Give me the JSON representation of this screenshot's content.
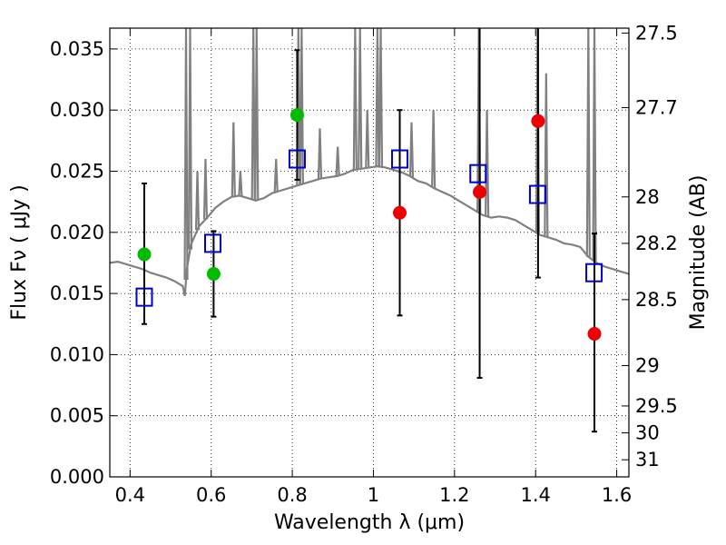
{
  "chart_data": {
    "type": "scatter",
    "title": "",
    "xlabel": "Wavelength  λ (μm)",
    "ylabel": "Flux  Fν  ( μJy )",
    "ylabel_right": "Magnitude (AB)",
    "xlim": [
      0.35,
      1.63
    ],
    "ylim": [
      0.0,
      0.0367
    ],
    "grid": true,
    "x_ticks": [
      0.4,
      0.6,
      0.8,
      1.0,
      1.2,
      1.4,
      1.6
    ],
    "x_tick_labels": [
      "0.4",
      "0.6",
      "0.8",
      "1",
      "1.2",
      "1.4",
      "1.6"
    ],
    "y_ticks": [
      0.0,
      0.005,
      0.01,
      0.015,
      0.02,
      0.025,
      0.03,
      0.035
    ],
    "y_tick_labels": [
      "0.000",
      "0.005",
      "0.010",
      "0.015",
      "0.020",
      "0.025",
      "0.030",
      "0.035"
    ],
    "right_ticks": [
      {
        "label": "27.5",
        "flux": 0.0363
      },
      {
        "label": "27.7",
        "flux": 0.0302
      },
      {
        "label": "28",
        "flux": 0.0229
      },
      {
        "label": "28.2",
        "flux": 0.0191
      },
      {
        "label": "28.5",
        "flux": 0.0145
      },
      {
        "label": "29",
        "flux": 0.0091
      },
      {
        "label": "29.5",
        "flux": 0.0058
      },
      {
        "label": "30",
        "flux": 0.0036
      },
      {
        "label": "31",
        "flux": 0.0014
      }
    ],
    "colors": {
      "model": "#808080",
      "green": "#00bb00",
      "red": "#ee0000",
      "square": "#0000cc",
      "errorbar": "#000000"
    },
    "model_spectrum": {
      "x": [
        0.35,
        0.37,
        0.39,
        0.41,
        0.43,
        0.45,
        0.47,
        0.49,
        0.51,
        0.53,
        0.535,
        0.54,
        0.55,
        0.57,
        0.59,
        0.61,
        0.63,
        0.65,
        0.67,
        0.69,
        0.71,
        0.73,
        0.75,
        0.77,
        0.79,
        0.81,
        0.83,
        0.85,
        0.87,
        0.89,
        0.91,
        0.93,
        0.95,
        0.97,
        0.99,
        1.01,
        1.03,
        1.05,
        1.07,
        1.09,
        1.11,
        1.13,
        1.15,
        1.17,
        1.19,
        1.21,
        1.23,
        1.25,
        1.27,
        1.29,
        1.31,
        1.33,
        1.35,
        1.37,
        1.39,
        1.41,
        1.43,
        1.45,
        1.47,
        1.49,
        1.51,
        1.53,
        1.55,
        1.57,
        1.59,
        1.61,
        1.63
      ],
      "y": [
        0.0175,
        0.0176,
        0.0174,
        0.0172,
        0.017,
        0.0167,
        0.0165,
        0.0163,
        0.016,
        0.0156,
        0.0148,
        0.017,
        0.019,
        0.0205,
        0.0212,
        0.022,
        0.0225,
        0.0229,
        0.023,
        0.0228,
        0.0226,
        0.0228,
        0.0232,
        0.0234,
        0.0236,
        0.0238,
        0.024,
        0.0242,
        0.0244,
        0.0245,
        0.0246,
        0.0248,
        0.0251,
        0.0252,
        0.0253,
        0.0254,
        0.0253,
        0.0251,
        0.0249,
        0.0246,
        0.0242,
        0.024,
        0.0236,
        0.0233,
        0.023,
        0.0226,
        0.0222,
        0.0218,
        0.0214,
        0.0212,
        0.0213,
        0.0212,
        0.021,
        0.0206,
        0.0202,
        0.0198,
        0.0196,
        0.0194,
        0.0191,
        0.019,
        0.0188,
        0.018,
        0.0175,
        0.0172,
        0.017,
        0.0168,
        0.0166
      ]
    },
    "emission_lines": [
      {
        "x": 0.538,
        "peak": 0.0367
      },
      {
        "x": 0.548,
        "peak": 0.0367
      },
      {
        "x": 0.566,
        "peak": 0.025
      },
      {
        "x": 0.586,
        "peak": 0.026
      },
      {
        "x": 0.655,
        "peak": 0.029
      },
      {
        "x": 0.672,
        "peak": 0.025
      },
      {
        "x": 0.704,
        "peak": 0.0367
      },
      {
        "x": 0.712,
        "peak": 0.0367
      },
      {
        "x": 0.76,
        "peak": 0.026
      },
      {
        "x": 0.815,
        "peak": 0.0367
      },
      {
        "x": 0.823,
        "peak": 0.0367
      },
      {
        "x": 0.868,
        "peak": 0.0285
      },
      {
        "x": 0.912,
        "peak": 0.027
      },
      {
        "x": 0.955,
        "peak": 0.0367
      },
      {
        "x": 0.967,
        "peak": 0.0367
      },
      {
        "x": 0.985,
        "peak": 0.03
      },
      {
        "x": 1.01,
        "peak": 0.0367
      },
      {
        "x": 1.018,
        "peak": 0.0367
      },
      {
        "x": 1.094,
        "peak": 0.029
      },
      {
        "x": 1.148,
        "peak": 0.03
      },
      {
        "x": 1.26,
        "peak": 0.0367
      },
      {
        "x": 1.28,
        "peak": 0.03
      },
      {
        "x": 1.405,
        "peak": 0.0367
      },
      {
        "x": 1.426,
        "peak": 0.033
      },
      {
        "x": 1.53,
        "peak": 0.0367
      },
      {
        "x": 1.545,
        "peak": 0.0367
      }
    ],
    "series": [
      {
        "marker": "circle",
        "color": "green",
        "points": [
          {
            "x": 0.435,
            "y": 0.0182,
            "ylow": 0.0125,
            "yhigh": 0.024
          },
          {
            "x": 0.606,
            "y": 0.0166,
            "ylow": 0.0131,
            "yhigh": 0.0201
          },
          {
            "x": 0.812,
            "y": 0.0296,
            "ylow": 0.0243,
            "yhigh": 0.0349
          }
        ]
      },
      {
        "marker": "circle",
        "color": "red",
        "points": [
          {
            "x": 1.065,
            "y": 0.0216,
            "ylow": 0.0132,
            "yhigh": 0.03
          },
          {
            "x": 1.262,
            "y": 0.0233,
            "ylow": 0.0081,
            "yhigh": 0.0367
          },
          {
            "x": 1.406,
            "y": 0.0291,
            "ylow": 0.0163,
            "yhigh": 0.0367
          },
          {
            "x": 1.545,
            "y": 0.0117,
            "ylow": 0.0037,
            "yhigh": 0.0199
          }
        ]
      },
      {
        "marker": "square",
        "color": "square",
        "points": [
          {
            "x": 0.435,
            "y": 0.0147
          },
          {
            "x": 0.604,
            "y": 0.0191
          },
          {
            "x": 0.812,
            "y": 0.026
          },
          {
            "x": 1.065,
            "y": 0.026
          },
          {
            "x": 1.258,
            "y": 0.0248
          },
          {
            "x": 1.405,
            "y": 0.0231
          },
          {
            "x": 1.544,
            "y": 0.0167
          }
        ]
      }
    ]
  }
}
